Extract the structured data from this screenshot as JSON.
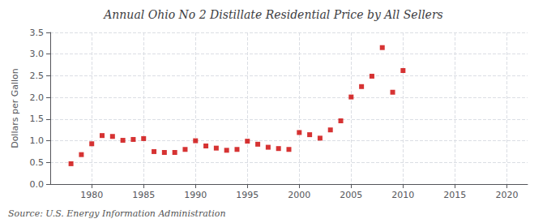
{
  "chart_data": {
    "type": "scatter",
    "title": "Annual Ohio No 2 Distillate Residential Price by All Sellers",
    "ylabel": "Dollars per Gallon",
    "annotations": [
      "Source: U.S. Energy Information Administration"
    ],
    "x": [
      1978,
      1979,
      1980,
      1981,
      1982,
      1983,
      1984,
      1985,
      1986,
      1987,
      1988,
      1989,
      1990,
      1991,
      1992,
      1993,
      1994,
      1995,
      1996,
      1997,
      1998,
      1999,
      2000,
      2001,
      2002,
      2003,
      2004,
      2005,
      2006,
      2007,
      2008,
      2009,
      2010
    ],
    "values": [
      0.47,
      0.68,
      0.93,
      1.12,
      1.1,
      1.01,
      1.03,
      1.05,
      0.75,
      0.73,
      0.73,
      0.8,
      1.0,
      0.88,
      0.83,
      0.78,
      0.8,
      0.99,
      0.92,
      0.85,
      0.82,
      0.8,
      1.19,
      1.14,
      1.06,
      1.25,
      1.46,
      2.01,
      2.25,
      2.49,
      3.15,
      2.12,
      2.62
    ],
    "color": "#cc0000",
    "marker": "square",
    "xlim": [
      1976,
      2022
    ],
    "xticks": [
      1980,
      1985,
      1990,
      1995,
      2000,
      2005,
      2010,
      2015,
      2020
    ],
    "ylim": [
      0.0,
      3.5
    ],
    "yticks": [
      {
        "value": 0.0,
        "label": "0.0"
      },
      0.5,
      {
        "value": 1.0,
        "label": "1.0"
      },
      1.5,
      {
        "value": 2.0,
        "label": "2.0"
      },
      2.5,
      {
        "value": 3.0,
        "label": "3.0"
      },
      3.5
    ],
    "grid": true
  }
}
